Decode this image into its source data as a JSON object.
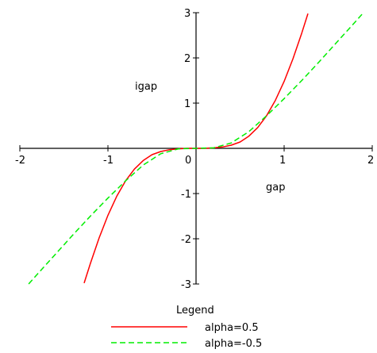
{
  "chart_data": {
    "type": "line",
    "xlabel": "gap",
    "ylabel": "igap",
    "xlim": [
      -2,
      2
    ],
    "ylim": [
      -3,
      3
    ],
    "x_ticks": [
      "-2",
      "-1",
      "0",
      "1",
      "2"
    ],
    "y_ticks": [
      "-3",
      "-2",
      "-1",
      "0",
      "1",
      "2",
      "3"
    ],
    "legend_title": "Legend",
    "legend_position": "bottom-center",
    "grid": false,
    "series": [
      {
        "name": "alpha=0.5",
        "color": "#ff0000",
        "dash": "solid",
        "x": [
          -1.27,
          -1.2,
          -1.1,
          -1.0,
          -0.9,
          -0.8,
          -0.7,
          -0.6,
          -0.5,
          -0.4,
          -0.3,
          -0.2,
          -0.1,
          0.0,
          0.1,
          0.2,
          0.3,
          0.4,
          0.5,
          0.6,
          0.7,
          0.8,
          0.9,
          1.0,
          1.1,
          1.2,
          1.27
        ],
        "y": [
          -2.98,
          -2.55,
          -1.98,
          -1.48,
          -1.06,
          -0.72,
          -0.46,
          -0.27,
          -0.14,
          -0.07,
          -0.03,
          -0.01,
          0.0,
          0.0,
          0.0,
          0.01,
          0.03,
          0.07,
          0.14,
          0.27,
          0.46,
          0.72,
          1.06,
          1.48,
          1.98,
          2.55,
          2.98
        ]
      },
      {
        "name": "alpha=-0.5",
        "color": "#00ee00",
        "dash": "dashed",
        "x": [
          -1.9,
          -1.8,
          -1.6,
          -1.4,
          -1.2,
          -1.0,
          -0.8,
          -0.6,
          -0.4,
          -0.2,
          0.0,
          0.2,
          0.4,
          0.6,
          0.8,
          1.0,
          1.2,
          1.4,
          1.6,
          1.8,
          1.9
        ],
        "y": [
          -3.0,
          -2.78,
          -2.35,
          -1.92,
          -1.5,
          -1.1,
          -0.72,
          -0.37,
          -0.12,
          -0.01,
          0.0,
          0.01,
          0.12,
          0.37,
          0.72,
          1.1,
          1.5,
          1.92,
          2.35,
          2.78,
          3.0
        ]
      }
    ]
  }
}
